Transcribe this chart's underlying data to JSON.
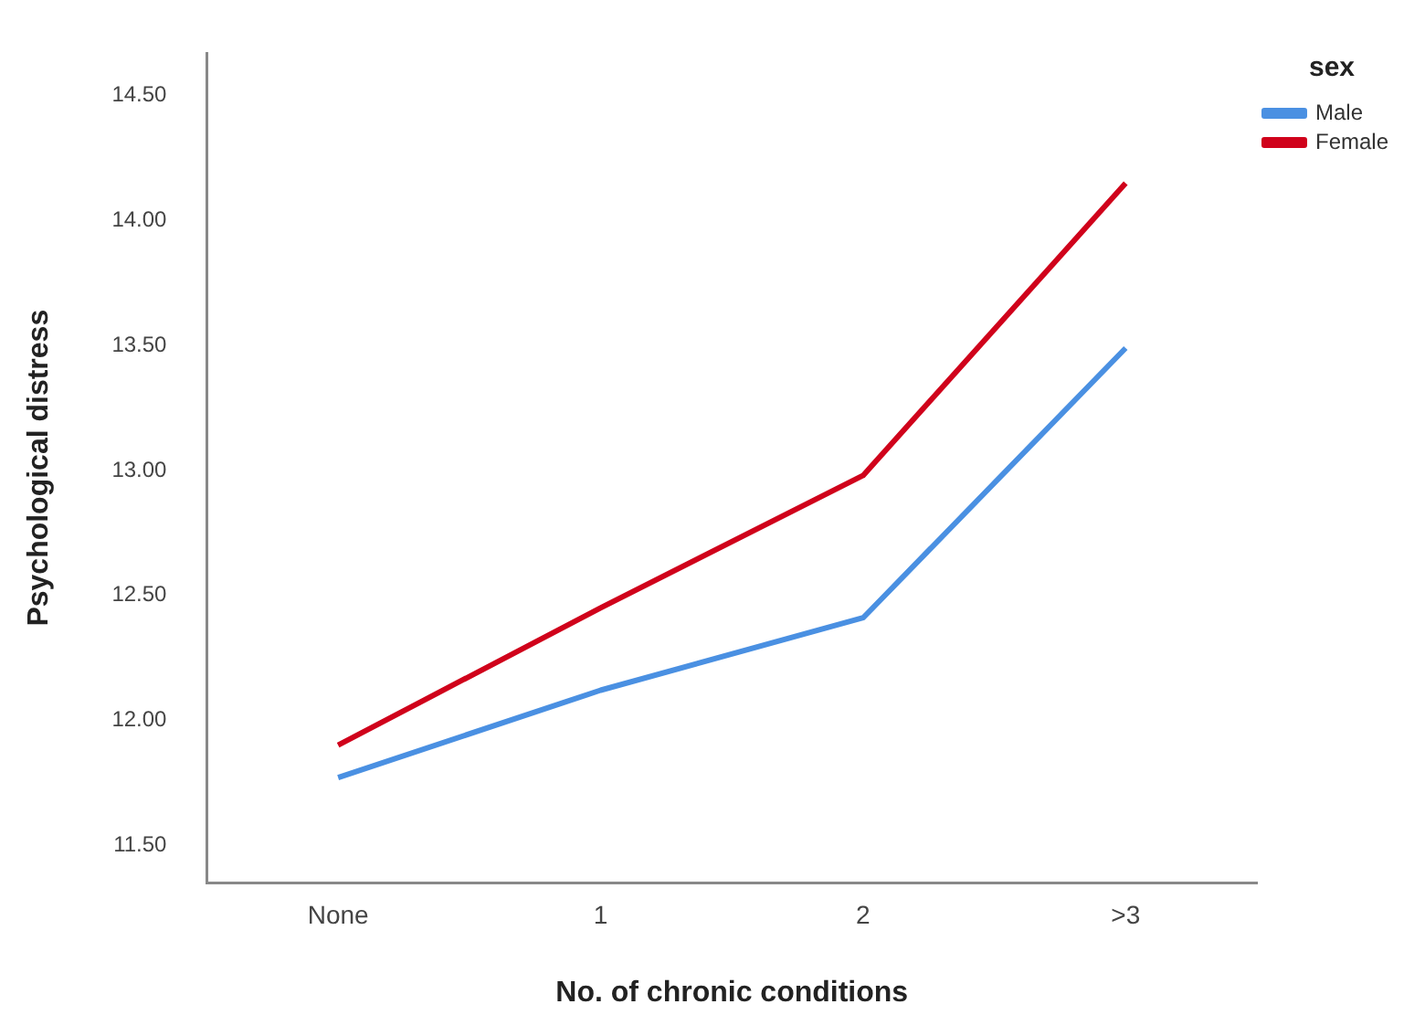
{
  "chart_data": {
    "type": "line",
    "xlabel": "No. of chronic conditions",
    "ylabel": "Psychological distress",
    "legend_title": "sex",
    "categories": [
      "None",
      "1",
      "2",
      ">3"
    ],
    "series": [
      {
        "name": "Male",
        "color": "#4a90e2",
        "values": [
          11.77,
          12.12,
          12.41,
          13.49
        ]
      },
      {
        "name": "Female",
        "color": "#d0021b",
        "values": [
          11.9,
          12.45,
          12.98,
          14.15
        ]
      }
    ],
    "ylim": [
      11.35,
      14.67
    ],
    "yticks": [
      {
        "value": 11.5,
        "label": "11.50"
      },
      {
        "value": 12,
        "label": "12.00"
      },
      {
        "value": 12.5,
        "label": "12.50"
      },
      {
        "value": 13,
        "label": "13.00"
      },
      {
        "value": 13.5,
        "label": "13.50"
      },
      {
        "value": 14,
        "label": "14.00"
      },
      {
        "value": 14.5,
        "label": "14.50"
      }
    ],
    "grid": false,
    "legend": "top right",
    "marker": "none",
    "line_style": "solid"
  }
}
